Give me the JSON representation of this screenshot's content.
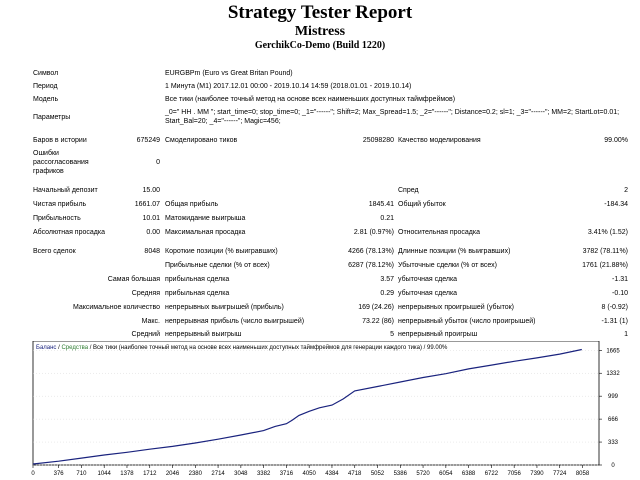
{
  "header": {
    "title": "Strategy Tester Report",
    "expert": "Mistress",
    "server": "GerchikCo-Demo (Build 1220)"
  },
  "info": {
    "symbol_label": "Символ",
    "symbol_value": "EURGBPm (Euro vs Great Britan Pound)",
    "period_label": "Период",
    "period_value": "1 Минута (M1) 2017.12.01 00:00 - 2019.10.14 14:59 (2018.01.01 - 2019.10.14)",
    "model_label": "Модель",
    "model_value": "Все тики (наиболее точный метод на основе всех наименьших доступных таймфреймов)",
    "params_label": "Параметры",
    "params_value": "_0=\" HH . MM \"; start_time=0; stop_time=0; _1=\"------\"; Shift=2; Max_Spread=1.5; _2=\"------\"; Distance=0.2; sl=1; _3=\"------\"; MM=2; StartLot=0.01; Start_Bal=20; _4=\"------\"; Magic=456;"
  },
  "history": {
    "bars_label": "Баров в истории",
    "bars_value": "675249",
    "ticks_label": "Смоделировано тиков",
    "ticks_value": "25098280",
    "quality_label": "Качество моделирования",
    "quality_value": "99.00%",
    "errors_label": "Ошибки рассогласования графиков",
    "errors_value": "0"
  },
  "stats": {
    "deposit_label": "Начальный депозит",
    "deposit_value": "15.00",
    "spread_label": "Спред",
    "spread_value": "2",
    "net_label": "Чистая прибыль",
    "net_value": "1661.07",
    "gross_profit_label": "Общая прибыль",
    "gross_profit_value": "1845.41",
    "gross_loss_label": "Общий убыток",
    "gross_loss_value": "-184.34",
    "pf_label": "Прибыльность",
    "pf_value": "10.01",
    "payoff_label": "Матожидание выигрыша",
    "payoff_value": "0.21",
    "abs_dd_label": "Абсолютная просадка",
    "abs_dd_value": "0.00",
    "max_dd_label": "Максимальная просадка",
    "max_dd_value": "2.81 (0.97%)",
    "rel_dd_label": "Относительная просадка",
    "rel_dd_value": "3.41% (1.52)"
  },
  "trades": {
    "total_label": "Всего сделок",
    "total_value": "8048",
    "short_label": "Короткие позиции (% выигравших)",
    "short_value": "4266 (78.13%)",
    "long_label": "Длинные позиции (% выигравших)",
    "long_value": "3782 (78.11%)",
    "profit_trades_label": "Прибыльные сделки (% от всех)",
    "profit_trades_value": "6287 (78.12%)",
    "loss_trades_label": "Убыточные сделки (% от всех)",
    "loss_trades_value": "1761 (21.88%)",
    "largest_label": "Самая большая",
    "largest_profit_label": "прибыльная сделка",
    "largest_profit_value": "3.57",
    "largest_loss_label": "убыточная сделка",
    "largest_loss_value": "-1.31",
    "average_label": "Средняя",
    "average_profit_label": "прибыльная сделка",
    "average_profit_value": "0.29",
    "average_loss_label": "убыточная сделка",
    "average_loss_value": "-0.10",
    "max_count_label": "Максимальное количество",
    "max_cons_wins_label": "непрерывных выигрышей (прибыль)",
    "max_cons_wins_value": "169 (24.26)",
    "max_cons_losses_label": "непрерывных проигрышей (убыток)",
    "max_cons_losses_value": "8 (-0.92)",
    "max_label": "Макс.",
    "max_cons_profit_label": "непрерывная прибыль (число выигрышей)",
    "max_cons_profit_value": "73.22 (86)",
    "max_cons_loss_label": "непрерывный убыток (число проигрышей)",
    "max_cons_loss_value": "-1.31 (1)",
    "avg_label": "Средний",
    "avg_cons_wins_label": "непрерывный выигрыш",
    "avg_cons_wins_value": "5",
    "avg_cons_losses_label": "непрерывный проигрыш",
    "avg_cons_losses_value": "1"
  },
  "chart_data": {
    "type": "line",
    "legend": {
      "balance": "Баланс",
      "separator": " / ",
      "equity": "Средства",
      "rest": " / Все тики (наиболее точный метод на основе всех наименьших доступных таймфреймов для генерации каждого тика) / 99.00%"
    },
    "x_ticks": [
      "0",
      "376",
      "710",
      "1044",
      "1378",
      "1712",
      "2046",
      "2380",
      "2714",
      "3048",
      "3382",
      "3716",
      "4050",
      "4384",
      "4718",
      "5052",
      "5386",
      "5720",
      "6054",
      "6388",
      "6722",
      "7056",
      "7390",
      "7724",
      "8058"
    ],
    "y_ticks": [
      "1665",
      "1332",
      "999",
      "666",
      "333",
      "0"
    ],
    "xlim": [
      0,
      8300
    ],
    "ylim": [
      0,
      1800
    ],
    "colors": {
      "balance": "#1a237e",
      "equity": "#2e7d32",
      "legend_balance": "#1a237e",
      "legend_equity": "#2e7d32"
    },
    "series": [
      {
        "name": "Баланс",
        "x": [
          0,
          376,
          710,
          1044,
          1378,
          1712,
          2046,
          2380,
          2714,
          3048,
          3382,
          3550,
          3716,
          3800,
          3900,
          4050,
          4200,
          4384,
          4550,
          4718,
          5052,
          5386,
          5720,
          6054,
          6388,
          6722,
          7056,
          7390,
          7724,
          8048
        ],
        "y": [
          15,
          55,
          100,
          145,
          185,
          230,
          270,
          320,
          375,
          435,
          500,
          560,
          600,
          650,
          720,
          780,
          830,
          870,
          960,
          1075,
          1140,
          1205,
          1270,
          1325,
          1395,
          1450,
          1505,
          1555,
          1610,
          1676
        ]
      }
    ]
  }
}
